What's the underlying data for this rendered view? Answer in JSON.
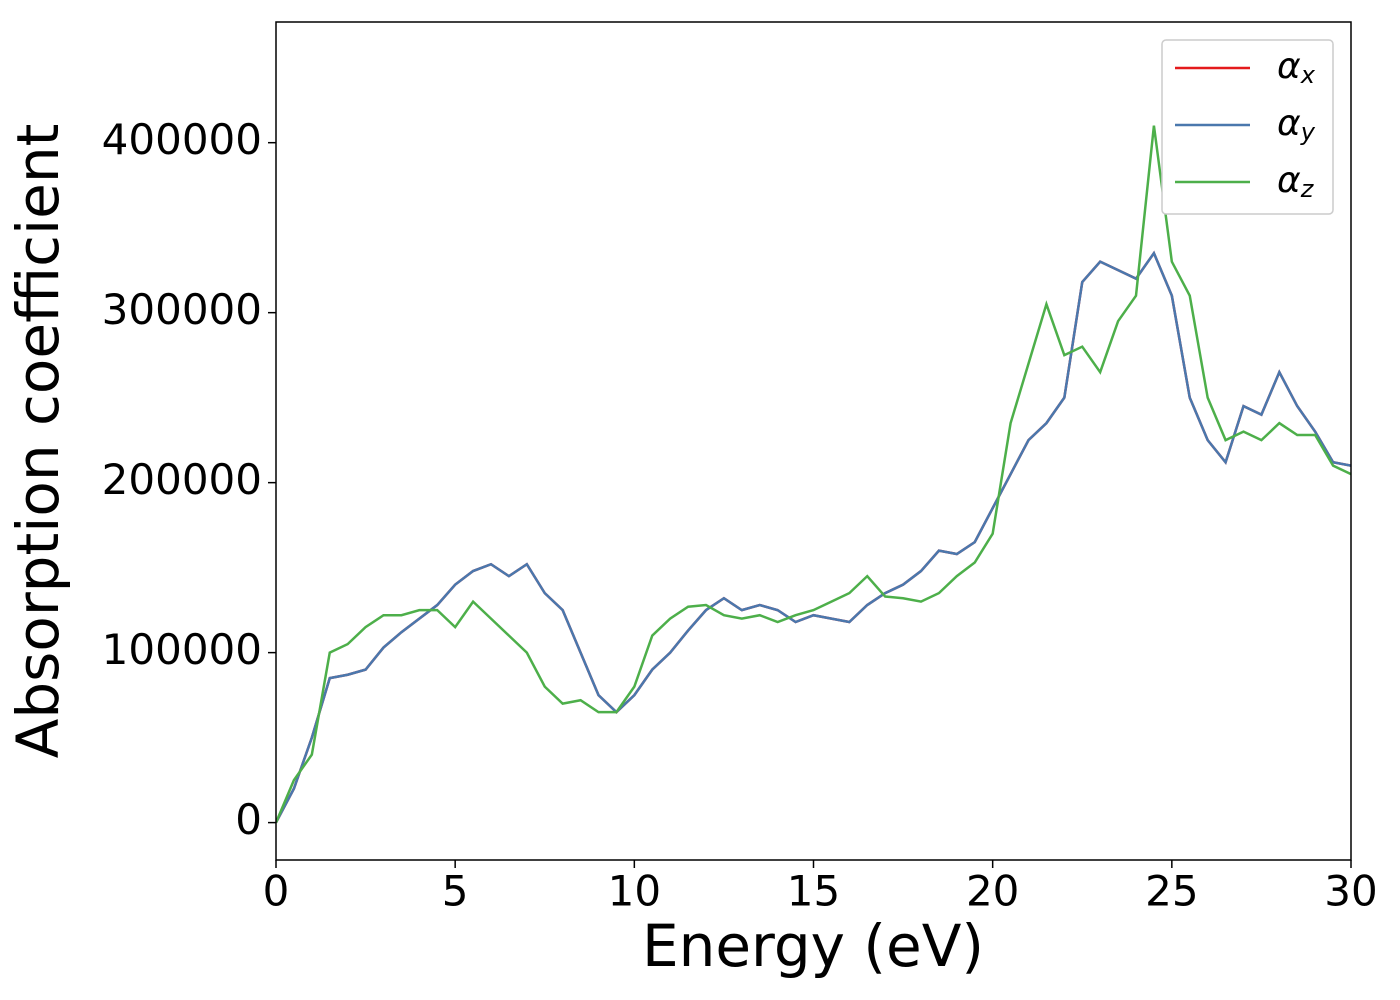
{
  "chart_data": {
    "type": "line",
    "xlabel": "Energy (eV)",
    "ylabel": "Absorption coefficient",
    "x": [
      0,
      0.5,
      1,
      1.5,
      2,
      2.5,
      3,
      3.5,
      4,
      4.5,
      5,
      5.5,
      6,
      6.5,
      7,
      7.5,
      8,
      8.5,
      9,
      9.5,
      10,
      10.5,
      11,
      11.5,
      12,
      12.5,
      13,
      13.5,
      14,
      14.5,
      15,
      15.5,
      16,
      16.5,
      17,
      17.5,
      18,
      18.5,
      19,
      19.5,
      20,
      20.5,
      21,
      21.5,
      22,
      22.5,
      23,
      23.5,
      24,
      24.5,
      25,
      25.5,
      26,
      26.5,
      27,
      27.5,
      28,
      28.5,
      29,
      29.5,
      30
    ],
    "series": [
      {
        "name": "αx",
        "color": "#e41a1c",
        "values": [
          0,
          20000,
          50000,
          85000,
          87000,
          90000,
          103000,
          112000,
          120000,
          128000,
          140000,
          148000,
          152000,
          145000,
          152000,
          135000,
          125000,
          100000,
          75000,
          65000,
          75000,
          90000,
          100000,
          113000,
          125000,
          132000,
          125000,
          128000,
          125000,
          118000,
          122000,
          120000,
          118000,
          128000,
          135000,
          140000,
          148000,
          160000,
          158000,
          165000,
          185000,
          205000,
          225000,
          235000,
          250000,
          318000,
          330000,
          325000,
          320000,
          335000,
          310000,
          250000,
          225000,
          212000,
          245000,
          240000,
          265000,
          245000,
          230000,
          212000,
          210000
        ]
      },
      {
        "name": "αy",
        "color": "#4a78ad",
        "values": [
          0,
          20000,
          50000,
          85000,
          87000,
          90000,
          103000,
          112000,
          120000,
          128000,
          140000,
          148000,
          152000,
          145000,
          152000,
          135000,
          125000,
          100000,
          75000,
          65000,
          75000,
          90000,
          100000,
          113000,
          125000,
          132000,
          125000,
          128000,
          125000,
          118000,
          122000,
          120000,
          118000,
          128000,
          135000,
          140000,
          148000,
          160000,
          158000,
          165000,
          185000,
          205000,
          225000,
          235000,
          250000,
          318000,
          330000,
          325000,
          320000,
          335000,
          310000,
          250000,
          225000,
          212000,
          245000,
          240000,
          265000,
          245000,
          230000,
          212000,
          210000
        ]
      },
      {
        "name": "αz",
        "color": "#4daf4a",
        "values": [
          0,
          25000,
          40000,
          100000,
          105000,
          115000,
          122000,
          122000,
          125000,
          125000,
          115000,
          130000,
          120000,
          110000,
          100000,
          80000,
          70000,
          72000,
          65000,
          65000,
          80000,
          110000,
          120000,
          127000,
          128000,
          122000,
          120000,
          122000,
          118000,
          122000,
          125000,
          130000,
          135000,
          145000,
          133000,
          132000,
          130000,
          135000,
          145000,
          153000,
          170000,
          235000,
          270000,
          305000,
          275000,
          280000,
          265000,
          295000,
          310000,
          410000,
          330000,
          310000,
          250000,
          225000,
          230000,
          225000,
          235000,
          228000,
          228000,
          210000,
          205000
        ]
      }
    ],
    "xlim": [
      0,
      30
    ],
    "xticks": [
      0,
      5,
      10,
      15,
      20,
      25,
      30
    ],
    "ylim": [
      -22000,
      471000
    ],
    "yticks": [
      0,
      100000,
      200000,
      300000,
      400000
    ],
    "legend": "upper right"
  }
}
